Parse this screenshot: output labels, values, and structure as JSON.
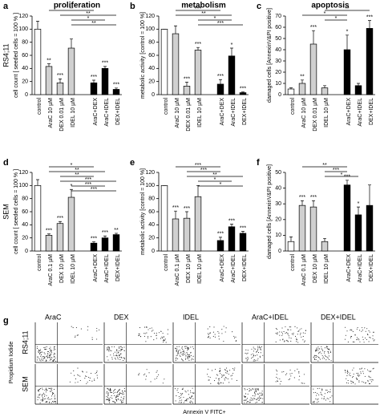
{
  "chart_data": [
    {
      "type": "bar",
      "panel": "a",
      "title": "proliferation",
      "ylabel": "cell count [ seeded cells = 100 % ]",
      "categories": [
        "control",
        "AraC 10 µM",
        "DEX 0.01 µM",
        "IDEL 10 µM",
        "AraC+DEX",
        "AraC+IDEL",
        "DEX+IDEL"
      ],
      "values": [
        100,
        43,
        18,
        71,
        18,
        40,
        8
      ],
      "errors": [
        12,
        4,
        6,
        14,
        4,
        3,
        2
      ],
      "significance": [
        null,
        "**",
        "***",
        null,
        "***",
        "***",
        "***"
      ],
      "colors": [
        "#ffffff",
        "#d0d0d0",
        "#d0d0d0",
        "#d0d0d0",
        "#000000",
        "#000000",
        "#000000"
      ],
      "ylim": [
        0,
        120
      ],
      "yticks": [
        0,
        20,
        40,
        60,
        80,
        100,
        120
      ],
      "brackets": [
        {
          "from": "AraC 10 µM",
          "to": "AraC+DEX",
          "label": "**"
        },
        {
          "from": "DEX 0.01 µM",
          "to": "DEX+IDEL",
          "label": "**"
        },
        {
          "from": "IDEL 10 µM",
          "to": "AraC+IDEL",
          "label": "*"
        },
        {
          "from": "IDEL 10 µM",
          "to": "DEX+IDEL",
          "label": "**"
        }
      ]
    },
    {
      "type": "bar",
      "panel": "b",
      "title": "metabolism",
      "ylabel": "metabolic activity [control = 100 %]",
      "categories": [
        "control",
        "AraC 10 µM",
        "DEX 0.01 µM",
        "IDEL 10 µM",
        "AraC+DEX",
        "AraC+IDEL",
        "DEX+IDEL"
      ],
      "values": [
        100,
        93,
        13,
        68,
        16,
        59,
        3
      ],
      "errors": [
        0,
        12,
        6,
        4,
        7,
        12,
        1
      ],
      "significance": [
        null,
        null,
        "***",
        "***",
        "***",
        "*",
        "***"
      ],
      "colors": [
        "#ffffff",
        "#d0d0d0",
        "#d0d0d0",
        "#d0d0d0",
        "#000000",
        "#000000",
        "#000000"
      ],
      "ylim": [
        0,
        120
      ],
      "yticks": [
        0,
        20,
        40,
        60,
        80,
        100,
        120
      ],
      "brackets": [
        {
          "from": "AraC 10 µM",
          "to": "AraC+DEX",
          "label": "***"
        },
        {
          "from": "AraC 10 µM",
          "to": "AraC+IDEL",
          "label": "**"
        },
        {
          "from": "IDEL 10 µM",
          "to": "AraC+IDEL",
          "label": "*"
        },
        {
          "from": "IDEL 10 µM",
          "to": "DEX+IDEL",
          "label": "***"
        }
      ]
    },
    {
      "type": "bar",
      "panel": "c",
      "title": "apoptosis",
      "ylabel": "damaged cells [AnnexinV&PI positive]",
      "categories": [
        "control",
        "AraC 10 µM",
        "DEX 0.01 µM",
        "IDEL 10 µM",
        "AraC+DEX",
        "AraC+IDEL",
        "DEX+IDEL"
      ],
      "values": [
        5,
        10,
        45,
        6,
        40,
        8,
        59
      ],
      "errors": [
        1,
        3,
        12,
        2,
        13,
        2,
        7
      ],
      "significance": [
        null,
        "**",
        "***",
        null,
        "*",
        null,
        "***"
      ],
      "colors": [
        "#ffffff",
        "#d0d0d0",
        "#d0d0d0",
        "#d0d0d0",
        "#000000",
        "#000000",
        "#000000"
      ],
      "ylim": [
        0,
        70
      ],
      "yticks": [
        0,
        10,
        20,
        30,
        40,
        50,
        60,
        70
      ],
      "brackets": [
        {
          "from": "IDEL 10 µM",
          "to": "DEX+IDEL",
          "label": "**"
        },
        {
          "from": "AraC 10 µM",
          "to": "AraC+DEX",
          "label": "*"
        },
        {
          "from": "IDEL 10 µM",
          "to": "AraC+DEX",
          "label": "*"
        }
      ]
    },
    {
      "type": "bar",
      "panel": "d",
      "ylabel": "cell count [ seeded cells = 100 % ]",
      "categories": [
        "control",
        "AraC 0.1 µM",
        "DEX 10 µM",
        "IDEL 10 µM",
        "AraC+DEX",
        "AraC+IDEL",
        "DEX+IDEL"
      ],
      "values": [
        100,
        24,
        42,
        82,
        12,
        20,
        25
      ],
      "errors": [
        9,
        2,
        3,
        12,
        2,
        3,
        2
      ],
      "significance": [
        null,
        "***",
        "***",
        "*",
        "***",
        "***",
        "**"
      ],
      "colors": [
        "#ffffff",
        "#d0d0d0",
        "#d0d0d0",
        "#d0d0d0",
        "#000000",
        "#000000",
        "#000000"
      ],
      "ylim": [
        0,
        120
      ],
      "yticks": [
        0,
        20,
        40,
        60,
        80,
        100,
        120
      ],
      "brackets": [
        {
          "from": "AraC 0.1 µM",
          "to": "AraC+DEX",
          "label": "*"
        },
        {
          "from": "AraC 0.1 µM",
          "to": "AraC+IDEL",
          "label": "**"
        },
        {
          "from": "DEX 10 µM",
          "to": "AraC+DEX",
          "label": "**"
        },
        {
          "from": "DEX 10 µM",
          "to": "DEX+IDEL",
          "label": "***"
        },
        {
          "from": "IDEL 10 µM",
          "to": "AraC+IDEL",
          "label": "***"
        },
        {
          "from": "IDEL 10 µM",
          "to": "DEX+IDEL",
          "label": "***"
        }
      ]
    },
    {
      "type": "bar",
      "panel": "e",
      "ylabel": "metabolic activity [control = 100 %]",
      "categories": [
        "control",
        "AraC 0.1 µM",
        "DEX 10 µM",
        "IDEL 10 µM",
        "AraC+DEX",
        "AraC+IDEL",
        "DEX+IDEL"
      ],
      "values": [
        100,
        49,
        50,
        83,
        16,
        37,
        27
      ],
      "errors": [
        0,
        12,
        10,
        17,
        5,
        4,
        3
      ],
      "significance": [
        null,
        "***",
        "***",
        null,
        "***",
        "***",
        "***"
      ],
      "colors": [
        "#ffffff",
        "#d0d0d0",
        "#d0d0d0",
        "#d0d0d0",
        "#000000",
        "#000000",
        "#000000"
      ],
      "ylim": [
        0,
        120
      ],
      "yticks": [
        0,
        20,
        40,
        60,
        80,
        100,
        120
      ],
      "brackets": [
        {
          "from": "AraC 0.1 µM",
          "to": "AraC+DEX",
          "label": "***"
        },
        {
          "from": "DEX 10 µM",
          "to": "AraC+DEX",
          "label": "***"
        },
        {
          "from": "DEX 10 µM",
          "to": "DEX+IDEL",
          "label": "**"
        },
        {
          "from": "IDEL 10 µM",
          "to": "AraC+IDEL",
          "label": "*"
        },
        {
          "from": "IDEL 10 µM",
          "to": "DEX+IDEL",
          "label": "*"
        }
      ]
    },
    {
      "type": "bar",
      "panel": "f",
      "ylabel": "damaged cells [AnnexinV&PI positive]",
      "categories": [
        "control",
        "AraC 0.1 µM",
        "DEX 10 µM",
        "IDEL 10 µM",
        "AraC+DEX",
        "AraC+IDEL",
        "DEX+IDEL"
      ],
      "values": [
        6,
        29,
        28,
        6,
        42,
        23,
        29
      ],
      "errors": [
        3,
        3,
        4,
        2,
        3,
        5,
        13
      ],
      "significance": [
        null,
        "***",
        "***",
        null,
        "***",
        "*",
        null
      ],
      "colors": [
        "#ffffff",
        "#d0d0d0",
        "#d0d0d0",
        "#d0d0d0",
        "#000000",
        "#000000",
        "#000000"
      ],
      "ylim": [
        0,
        50
      ],
      "yticks": [
        0,
        10,
        20,
        30,
        40,
        50
      ],
      "brackets": [
        {
          "from": "AraC 0.1 µM",
          "to": "AraC+DEX",
          "label": "**"
        },
        {
          "from": "IDEL 10 µM",
          "to": "AraC+DEX",
          "label": "***"
        },
        {
          "from": "IDEL 10 µM",
          "to": "AraC+IDEL",
          "label": "*"
        }
      ]
    }
  ],
  "rows": [
    "RS4;11",
    "SEM"
  ],
  "flow": {
    "panel": "g",
    "columns": [
      "AraC",
      "DEX",
      "IDEL",
      "AraC+IDEL",
      "DEX+IDEL"
    ],
    "rows": [
      "RS4;11",
      "SEM"
    ],
    "xlabel": "Annexin V FITC+",
    "ylabel": "Propidium Iodide"
  }
}
